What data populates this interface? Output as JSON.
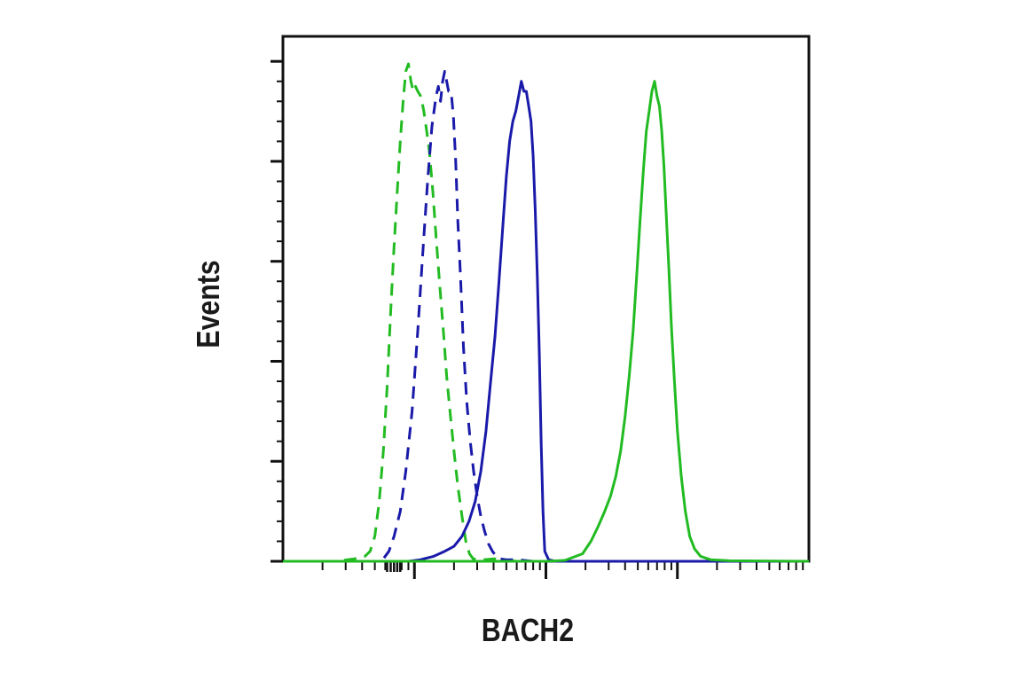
{
  "chart_data": {
    "type": "line",
    "title": "",
    "xlabel": "BACH2",
    "ylabel": "Events",
    "x_scale": "log",
    "xlim": [
      10,
      100000
    ],
    "ylim": [
      0,
      105
    ],
    "grid": false,
    "legend": "none",
    "x_ticks_labeled": false,
    "y_ticks_labeled": false,
    "series": [
      {
        "style": "dashed",
        "color": "#22bb22",
        "points": [
          [
            10,
            0
          ],
          [
            25,
            0
          ],
          [
            35,
            0.5
          ],
          [
            42,
            1
          ],
          [
            46,
            2
          ],
          [
            50,
            5
          ],
          [
            54,
            12
          ],
          [
            58,
            22
          ],
          [
            62,
            35
          ],
          [
            66,
            50
          ],
          [
            70,
            63
          ],
          [
            74,
            74
          ],
          [
            78,
            84
          ],
          [
            82,
            92
          ],
          [
            86,
            98
          ],
          [
            90,
            99.5
          ],
          [
            94,
            96
          ],
          [
            98,
            94
          ],
          [
            102,
            95
          ],
          [
            106,
            94
          ],
          [
            112,
            93
          ],
          [
            118,
            90
          ],
          [
            124,
            86
          ],
          [
            130,
            82
          ],
          [
            138,
            74
          ],
          [
            146,
            65
          ],
          [
            156,
            55
          ],
          [
            166,
            46
          ],
          [
            176,
            37
          ],
          [
            188,
            29
          ],
          [
            200,
            22
          ],
          [
            214,
            15
          ],
          [
            230,
            9
          ],
          [
            246,
            4
          ],
          [
            262,
            1.5
          ],
          [
            280,
            0.5
          ],
          [
            330,
            0.3
          ],
          [
            400,
            0.5
          ],
          [
            450,
            0.5
          ],
          [
            520,
            0.2
          ],
          [
            600,
            0
          ],
          [
            100000,
            0
          ]
        ]
      },
      {
        "style": "dashed",
        "color": "#1a1aaa",
        "points": [
          [
            10,
            0
          ],
          [
            52,
            0
          ],
          [
            58,
            0.5
          ],
          [
            64,
            2
          ],
          [
            70,
            5
          ],
          [
            78,
            10
          ],
          [
            86,
            18
          ],
          [
            96,
            30
          ],
          [
            106,
            46
          ],
          [
            116,
            62
          ],
          [
            126,
            76
          ],
          [
            136,
            87
          ],
          [
            146,
            93
          ],
          [
            152,
            95
          ],
          [
            158,
            92
          ],
          [
            164,
            96
          ],
          [
            170,
            98
          ],
          [
            176,
            96
          ],
          [
            182,
            94
          ],
          [
            190,
            94
          ],
          [
            198,
            89
          ],
          [
            206,
            80
          ],
          [
            214,
            68
          ],
          [
            224,
            57
          ],
          [
            236,
            43
          ],
          [
            250,
            32
          ],
          [
            266,
            24
          ],
          [
            282,
            18
          ],
          [
            300,
            13
          ],
          [
            320,
            9
          ],
          [
            342,
            6
          ],
          [
            366,
            3.5
          ],
          [
            392,
            2
          ],
          [
            420,
            1
          ],
          [
            450,
            0.5
          ],
          [
            500,
            0.3
          ],
          [
            620,
            0.3
          ],
          [
            800,
            0
          ],
          [
            100000,
            0
          ]
        ]
      },
      {
        "style": "solid",
        "color": "#1a1aaa",
        "points": [
          [
            10,
            0
          ],
          [
            90,
            0
          ],
          [
            110,
            0.3
          ],
          [
            140,
            1
          ],
          [
            170,
            2
          ],
          [
            200,
            3
          ],
          [
            230,
            5
          ],
          [
            260,
            8
          ],
          [
            290,
            12
          ],
          [
            320,
            18
          ],
          [
            350,
            26
          ],
          [
            380,
            36
          ],
          [
            410,
            45
          ],
          [
            440,
            56
          ],
          [
            470,
            67
          ],
          [
            500,
            77
          ],
          [
            530,
            84
          ],
          [
            560,
            88
          ],
          [
            590,
            90
          ],
          [
            620,
            93
          ],
          [
            650,
            96
          ],
          [
            680,
            94
          ],
          [
            710,
            94
          ],
          [
            740,
            91
          ],
          [
            770,
            88
          ],
          [
            800,
            81
          ],
          [
            830,
            70
          ],
          [
            860,
            57
          ],
          [
            890,
            42
          ],
          [
            920,
            24
          ],
          [
            950,
            10
          ],
          [
            980,
            2
          ],
          [
            1050,
            0.3
          ],
          [
            1200,
            0
          ],
          [
            100000,
            0
          ]
        ]
      },
      {
        "style": "solid",
        "color": "#22bb22",
        "points": [
          [
            10,
            0
          ],
          [
            1000,
            0
          ],
          [
            1400,
            0.2
          ],
          [
            1900,
            1.5
          ],
          [
            2200,
            4
          ],
          [
            2500,
            7
          ],
          [
            2800,
            10
          ],
          [
            3100,
            13
          ],
          [
            3400,
            17
          ],
          [
            3700,
            22
          ],
          [
            4000,
            29
          ],
          [
            4300,
            37
          ],
          [
            4600,
            46
          ],
          [
            4900,
            57
          ],
          [
            5200,
            68
          ],
          [
            5500,
            78
          ],
          [
            5800,
            86
          ],
          [
            6100,
            90
          ],
          [
            6400,
            94
          ],
          [
            6700,
            96
          ],
          [
            7000,
            93
          ],
          [
            7300,
            91
          ],
          [
            7600,
            86
          ],
          [
            7900,
            79
          ],
          [
            8200,
            70
          ],
          [
            8600,
            59
          ],
          [
            9000,
            47
          ],
          [
            9500,
            36
          ],
          [
            10000,
            26
          ],
          [
            10700,
            17
          ],
          [
            11500,
            10
          ],
          [
            12400,
            5
          ],
          [
            13500,
            2.5
          ],
          [
            15000,
            1
          ],
          [
            18000,
            0.3
          ],
          [
            25000,
            0.1
          ],
          [
            100000,
            0
          ]
        ]
      }
    ]
  }
}
